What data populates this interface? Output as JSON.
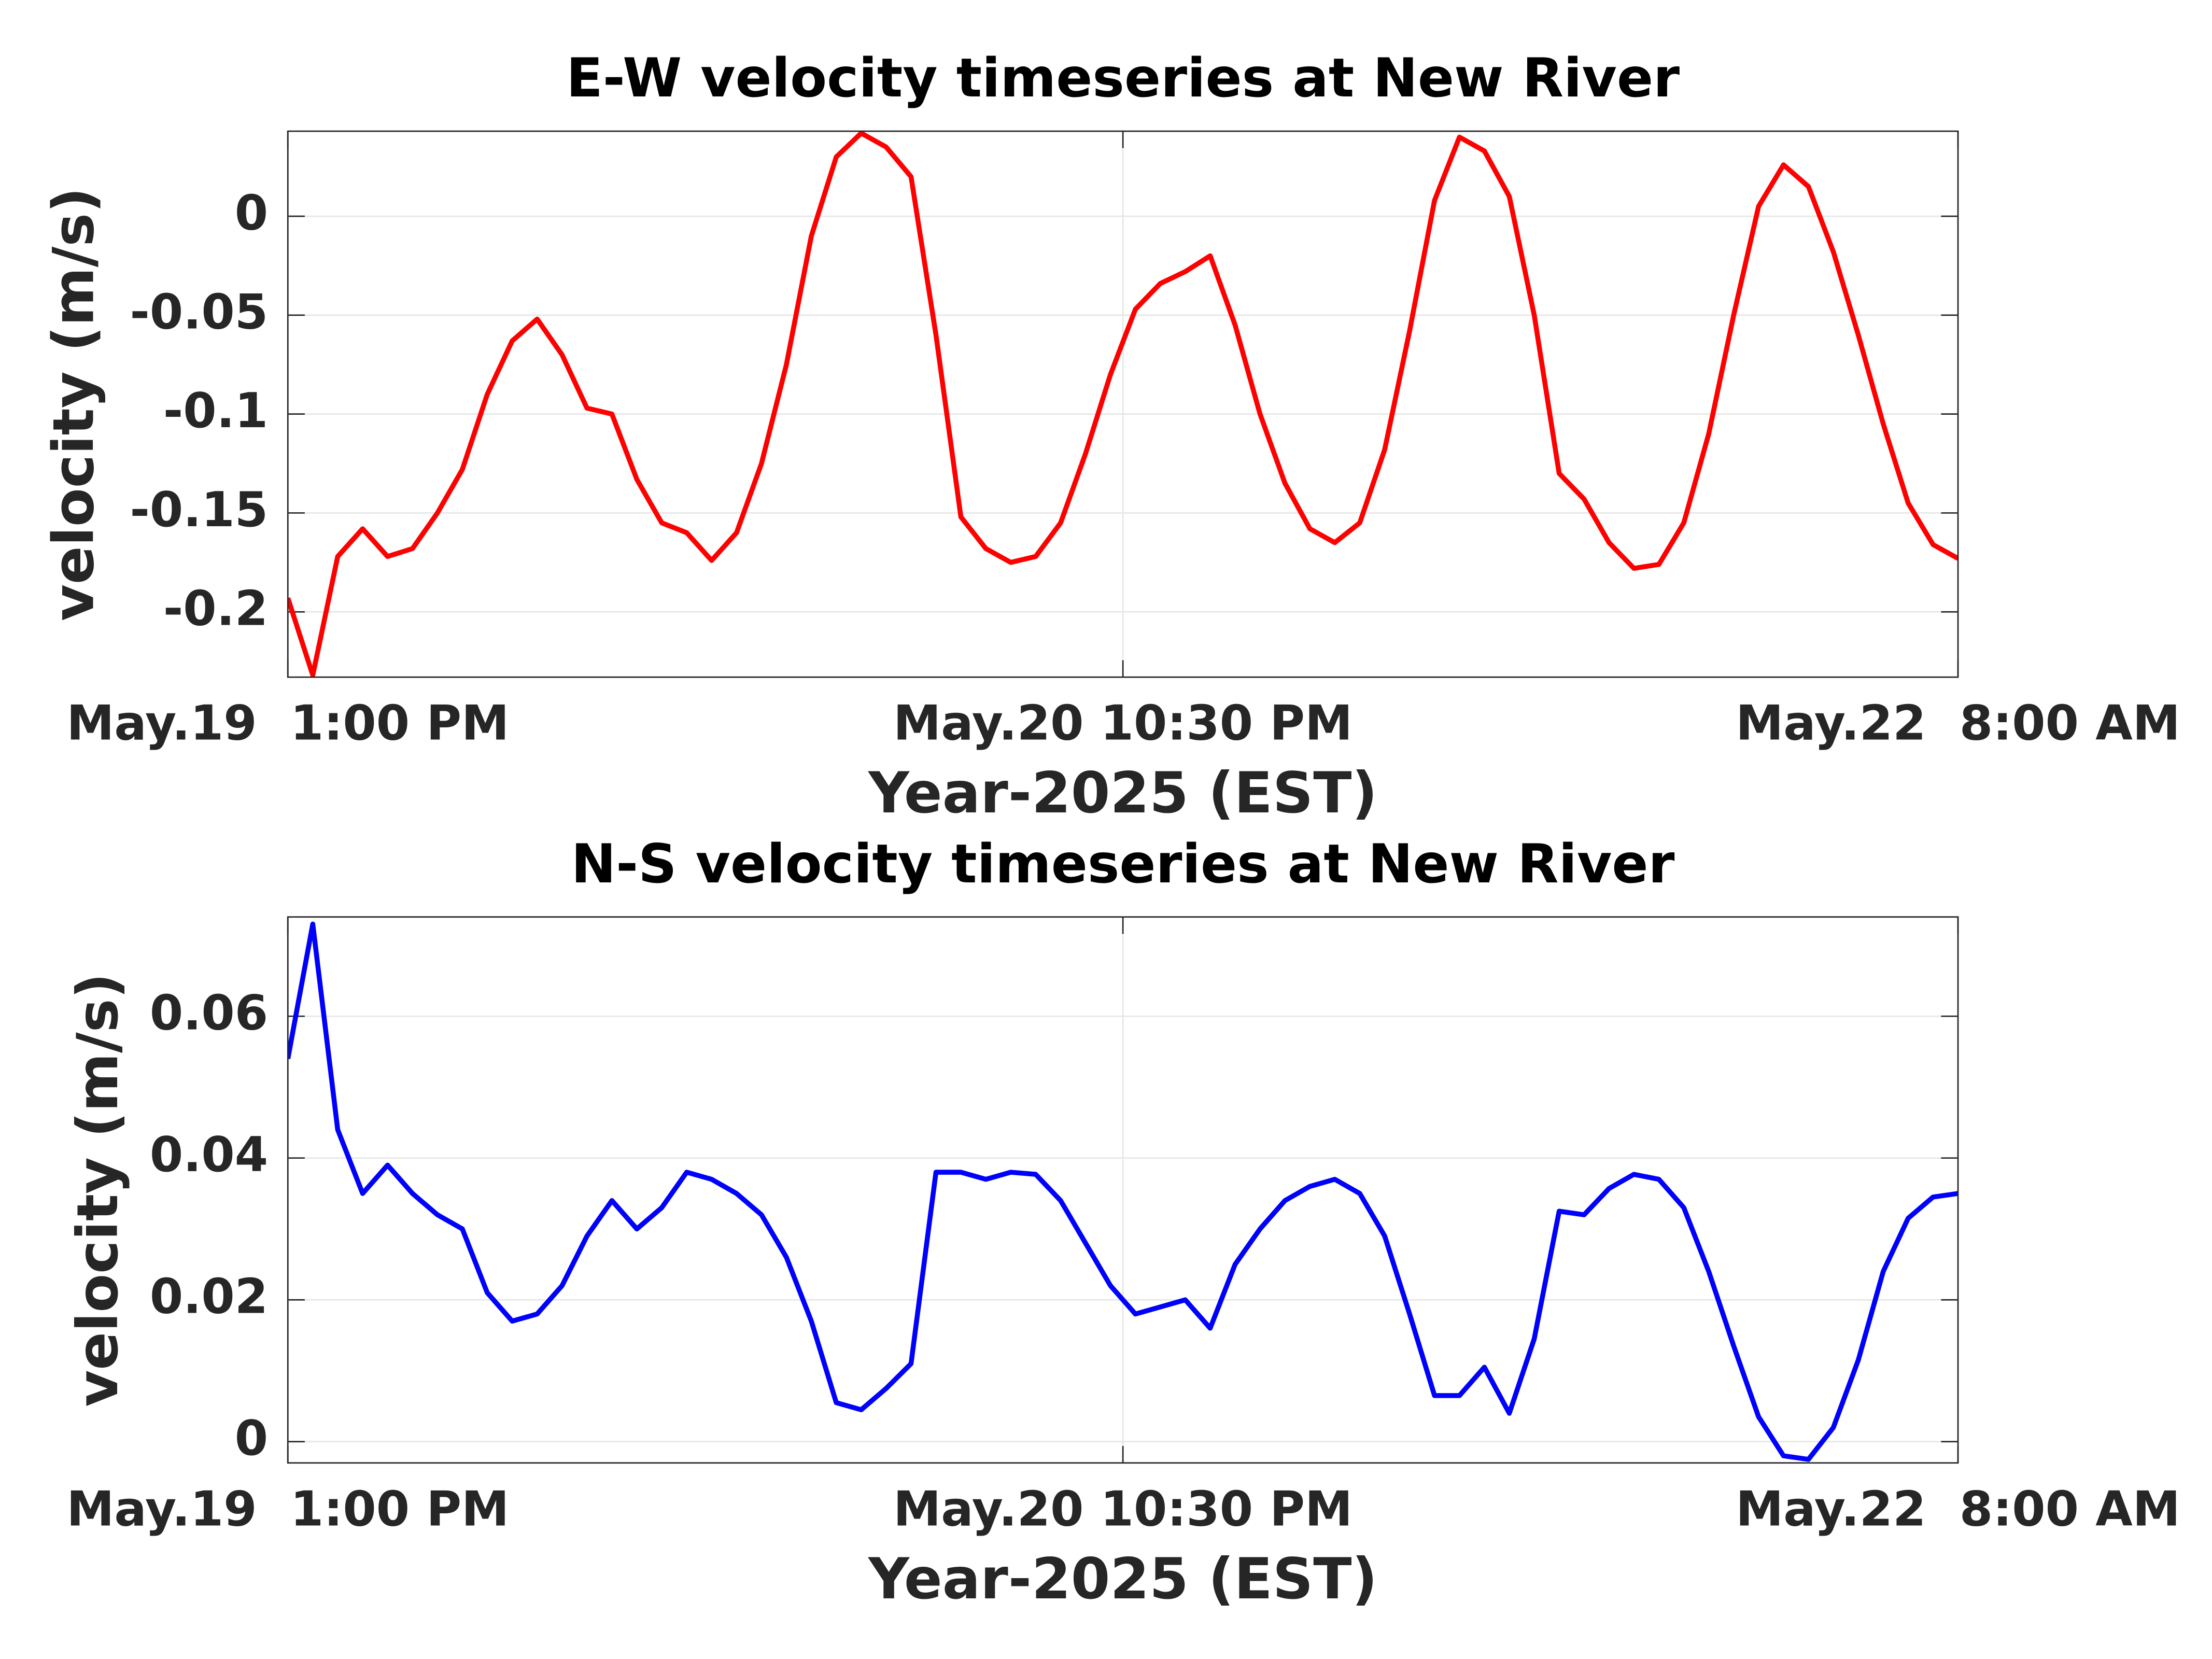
{
  "chart_data": [
    {
      "type": "line",
      "title": "E-W velocity timeseries at New River",
      "xlabel": "Year-2025 (EST)",
      "ylabel": "velocity (m/s)",
      "x": [
        "2025-05-19T13:00",
        "2025-05-19T14:00",
        "2025-05-19T15:00",
        "2025-05-19T16:00",
        "2025-05-19T17:00",
        "2025-05-19T18:00",
        "2025-05-19T19:00",
        "2025-05-19T20:00",
        "2025-05-19T21:00",
        "2025-05-19T22:00",
        "2025-05-19T23:00",
        "2025-05-20T00:00",
        "2025-05-20T01:00",
        "2025-05-20T02:00",
        "2025-05-20T03:00",
        "2025-05-20T04:00",
        "2025-05-20T05:00",
        "2025-05-20T06:00",
        "2025-05-20T07:00",
        "2025-05-20T08:00",
        "2025-05-20T09:00",
        "2025-05-20T10:00",
        "2025-05-20T11:00",
        "2025-05-20T12:00",
        "2025-05-20T13:00",
        "2025-05-20T14:00",
        "2025-05-20T15:00",
        "2025-05-20T16:00",
        "2025-05-20T17:00",
        "2025-05-20T18:00",
        "2025-05-20T19:00",
        "2025-05-20T20:00",
        "2025-05-20T21:00",
        "2025-05-20T22:00",
        "2025-05-20T23:00",
        "2025-05-21T00:00",
        "2025-05-21T01:00",
        "2025-05-21T02:00",
        "2025-05-21T03:00",
        "2025-05-21T04:00",
        "2025-05-21T05:00",
        "2025-05-21T06:00",
        "2025-05-21T07:00",
        "2025-05-21T08:00",
        "2025-05-21T09:00",
        "2025-05-21T10:00",
        "2025-05-21T11:00",
        "2025-05-21T12:00",
        "2025-05-21T13:00",
        "2025-05-21T14:00",
        "2025-05-21T15:00",
        "2025-05-21T16:00",
        "2025-05-21T17:00",
        "2025-05-21T18:00",
        "2025-05-21T19:00",
        "2025-05-21T20:00",
        "2025-05-21T21:00",
        "2025-05-21T22:00",
        "2025-05-21T23:00",
        "2025-05-22T00:00",
        "2025-05-22T01:00",
        "2025-05-22T02:00",
        "2025-05-22T03:00",
        "2025-05-22T04:00",
        "2025-05-22T05:00",
        "2025-05-22T06:00",
        "2025-05-22T07:00",
        "2025-05-22T08:00"
      ],
      "series": [
        {
          "color": "#ff0000",
          "values": [
            -0.193,
            -0.232,
            -0.172,
            -0.158,
            -0.172,
            -0.168,
            -0.15,
            -0.128,
            -0.09,
            -0.063,
            -0.052,
            -0.07,
            -0.097,
            -0.1,
            -0.133,
            -0.155,
            -0.16,
            -0.174,
            -0.16,
            -0.125,
            -0.075,
            -0.01,
            0.03,
            0.042,
            0.035,
            0.02,
            -0.06,
            -0.152,
            -0.168,
            -0.175,
            -0.172,
            -0.155,
            -0.12,
            -0.08,
            -0.047,
            -0.034,
            -0.028,
            -0.02,
            -0.055,
            -0.1,
            -0.135,
            -0.158,
            -0.165,
            -0.155,
            -0.118,
            -0.058,
            0.008,
            0.04,
            0.033,
            0.01,
            -0.05,
            -0.13,
            -0.143,
            -0.165,
            -0.178,
            -0.176,
            -0.155,
            -0.11,
            -0.05,
            0.005,
            0.026,
            0.015,
            -0.018,
            -0.06,
            -0.105,
            -0.145,
            -0.166,
            -0.173
          ]
        }
      ],
      "xlim": [
        "2025-05-19T13:00",
        "2025-05-22T08:00"
      ],
      "xticks": [
        {
          "value": "2025-05-19T13:00",
          "label": "May.19  1:00 PM"
        },
        {
          "value": "2025-05-20T22:30",
          "label": "May.20 10:30 PM"
        },
        {
          "value": "2025-05-22T08:00",
          "label": "May.22  8:00 AM"
        }
      ],
      "ylim": [
        -0.233,
        0.043
      ],
      "yticks": [
        -0.2,
        -0.15,
        -0.1,
        -0.05,
        0
      ],
      "grid": true
    },
    {
      "type": "line",
      "title": "N-S velocity timeseries at New River",
      "xlabel": "Year-2025 (EST)",
      "ylabel": "velocity (m/s)",
      "x": [
        "2025-05-19T13:00",
        "2025-05-19T14:00",
        "2025-05-19T15:00",
        "2025-05-19T16:00",
        "2025-05-19T17:00",
        "2025-05-19T18:00",
        "2025-05-19T19:00",
        "2025-05-19T20:00",
        "2025-05-19T21:00",
        "2025-05-19T22:00",
        "2025-05-19T23:00",
        "2025-05-20T00:00",
        "2025-05-20T01:00",
        "2025-05-20T02:00",
        "2025-05-20T03:00",
        "2025-05-20T04:00",
        "2025-05-20T05:00",
        "2025-05-20T06:00",
        "2025-05-20T07:00",
        "2025-05-20T08:00",
        "2025-05-20T09:00",
        "2025-05-20T10:00",
        "2025-05-20T11:00",
        "2025-05-20T12:00",
        "2025-05-20T13:00",
        "2025-05-20T14:00",
        "2025-05-20T15:00",
        "2025-05-20T16:00",
        "2025-05-20T17:00",
        "2025-05-20T18:00",
        "2025-05-20T19:00",
        "2025-05-20T20:00",
        "2025-05-20T21:00",
        "2025-05-20T22:00",
        "2025-05-20T23:00",
        "2025-05-21T00:00",
        "2025-05-21T01:00",
        "2025-05-21T02:00",
        "2025-05-21T03:00",
        "2025-05-21T04:00",
        "2025-05-21T05:00",
        "2025-05-21T06:00",
        "2025-05-21T07:00",
        "2025-05-21T08:00",
        "2025-05-21T09:00",
        "2025-05-21T10:00",
        "2025-05-21T11:00",
        "2025-05-21T12:00",
        "2025-05-21T13:00",
        "2025-05-21T14:00",
        "2025-05-21T15:00",
        "2025-05-21T16:00",
        "2025-05-21T17:00",
        "2025-05-21T18:00",
        "2025-05-21T19:00",
        "2025-05-21T20:00",
        "2025-05-21T21:00",
        "2025-05-21T22:00",
        "2025-05-21T23:00",
        "2025-05-22T00:00",
        "2025-05-22T01:00",
        "2025-05-22T02:00",
        "2025-05-22T03:00",
        "2025-05-22T04:00",
        "2025-05-22T05:00",
        "2025-05-22T06:00",
        "2025-05-22T07:00",
        "2025-05-22T08:00"
      ],
      "series": [
        {
          "color": "#0000ff",
          "values": [
            0.054,
            0.073,
            0.044,
            0.035,
            0.039,
            0.035,
            0.032,
            0.03,
            0.021,
            0.017,
            0.018,
            0.022,
            0.029,
            0.034,
            0.03,
            0.033,
            0.038,
            0.037,
            0.035,
            0.032,
            0.026,
            0.017,
            0.0055,
            0.0045,
            0.0075,
            0.011,
            0.038,
            0.038,
            0.037,
            0.038,
            0.0377,
            0.034,
            0.028,
            0.022,
            0.018,
            0.019,
            0.02,
            0.016,
            0.025,
            0.03,
            0.034,
            0.036,
            0.037,
            0.035,
            0.029,
            0.018,
            0.0065,
            0.0065,
            0.0105,
            0.004,
            0.0145,
            0.0325,
            0.032,
            0.0357,
            0.0377,
            0.037,
            0.033,
            0.024,
            0.0135,
            0.0035,
            -0.002,
            -0.0025,
            0.002,
            0.0115,
            0.024,
            0.0315,
            0.0345,
            0.035
          ]
        }
      ],
      "xlim": [
        "2025-05-19T13:00",
        "2025-05-22T08:00"
      ],
      "xticks": [
        {
          "value": "2025-05-19T13:00",
          "label": "May.19  1:00 PM"
        },
        {
          "value": "2025-05-20T22:30",
          "label": "May.20 10:30 PM"
        },
        {
          "value": "2025-05-22T08:00",
          "label": "May.22  8:00 AM"
        }
      ],
      "ylim": [
        -0.003,
        0.074
      ],
      "yticks": [
        0,
        0.02,
        0.04,
        0.06
      ],
      "grid": true
    }
  ]
}
